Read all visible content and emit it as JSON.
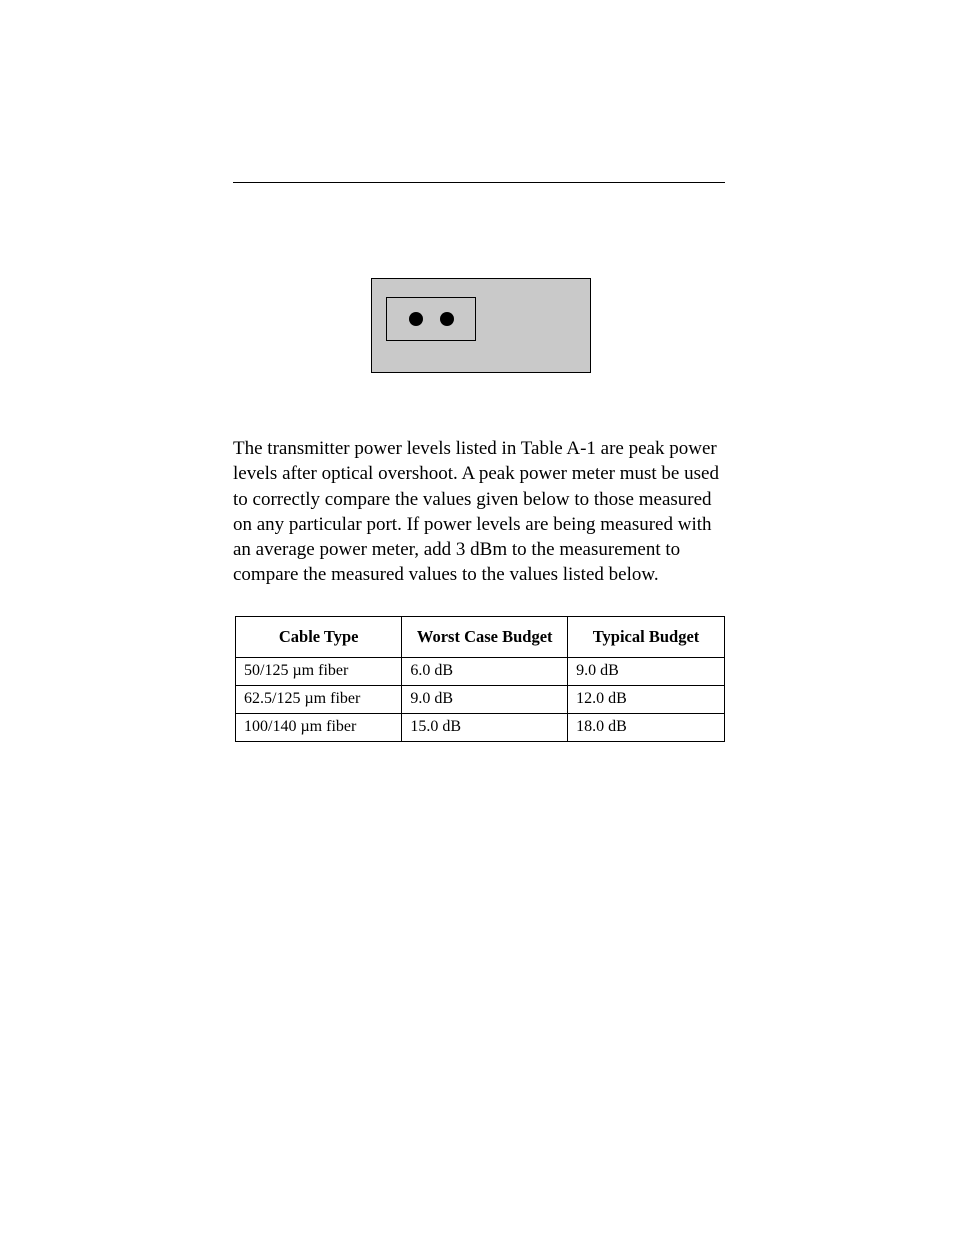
{
  "paragraph": "The transmitter power levels listed in Table A-1 are peak power levels after optical overshoot. A peak power meter must be used to correctly compare the values given below to those measured on any particular port. If power levels are being measured with an average power meter, add 3 dBm to the measurement to compare the measured values to the values listed below.",
  "table": {
    "headers": [
      "Cable Type",
      "Worst Case Budget",
      "Typical Budget"
    ],
    "rows": [
      [
        "50/125 µm fiber",
        "6.0 dB",
        "9.0 dB"
      ],
      [
        "62.5/125 µm fiber",
        "9.0 dB",
        "12.0 dB"
      ],
      [
        "100/140 µm fiber",
        "15.0 dB",
        "18.0 dB"
      ]
    ]
  },
  "colors": {
    "page_bg": "#ffffff",
    "text": "#000000",
    "rule": "#000000",
    "figure_bg": "#c9c9c9",
    "figure_border": "#000000",
    "table_border": "#000000"
  },
  "typography": {
    "body_font": "Palatino/Book Antiqua serif",
    "body_size_pt": 14,
    "table_size_pt": 12,
    "header_weight": "bold"
  },
  "figure": {
    "type": "diagram",
    "description": "two-port-connector",
    "outer_bg": "#c9c9c9",
    "inner_border": "#000000",
    "dot_color": "#000000",
    "dot_count": 2
  }
}
